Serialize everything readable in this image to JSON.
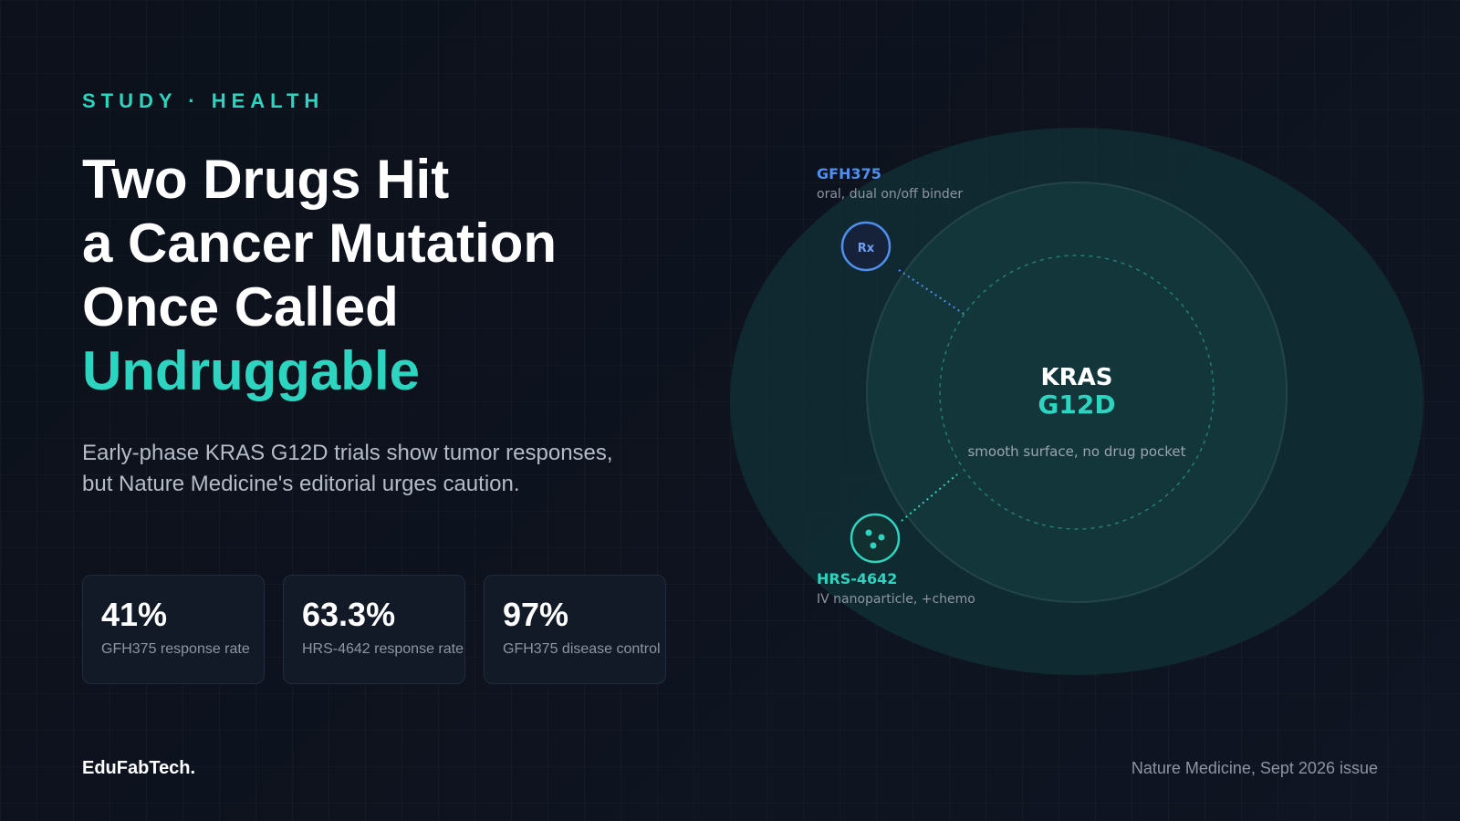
{
  "header": {
    "kicker": "STUDY · HEALTH"
  },
  "title": {
    "lines": [
      "Two Drugs Hit",
      "a Cancer Mutation",
      "Once Called"
    ],
    "highlight": "Undruggable"
  },
  "subtitle": {
    "lines": [
      "Early-phase KRAS G12D trials show tumor responses,",
      "but Nature Medicine's editorial urges caution."
    ]
  },
  "stats": [
    {
      "value": "41%",
      "label": "GFH375 response rate"
    },
    {
      "value": "63.3%",
      "label": "HRS-4642 response rate"
    },
    {
      "value": "97%",
      "label": "GFH375 disease control"
    }
  ],
  "diagram": {
    "target": {
      "name": "KRAS",
      "variant": "G12D",
      "note": "smooth surface, no drug pocket"
    },
    "drugs": [
      {
        "name": "GFH375",
        "detail": "oral, dual on/off binder",
        "icon": "Rx"
      },
      {
        "name": "HRS-4642",
        "detail": "IV nanoparticle, +chemo"
      }
    ]
  },
  "footer": {
    "brand": "EduFabTech.",
    "source": "Nature Medicine, Sept 2026 issue"
  }
}
